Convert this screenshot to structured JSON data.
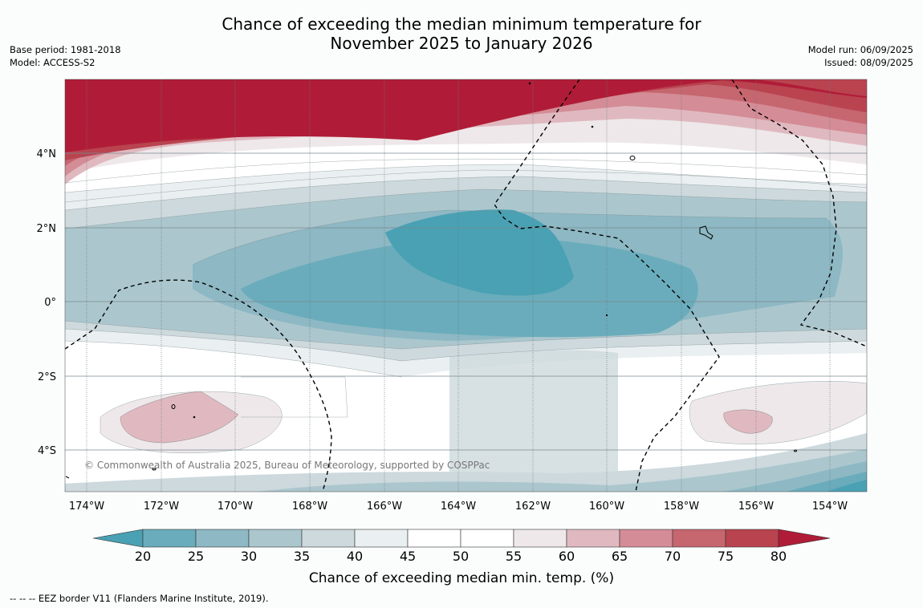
{
  "title": {
    "line1": "Chance of exceeding the median minimum temperature for",
    "line2": "November 2025 to January 2026"
  },
  "meta": {
    "base_period": "Base period: 1981-2018",
    "model": "Model: ACCESS-S2",
    "model_run": "Model run: 06/09/2025",
    "issued": "Issued: 08/09/2025"
  },
  "copyright": "© Commonwealth of Australia 2025, Bureau of Meteorology, supported by COSPPac",
  "lat_labels": [
    "4°N",
    "2°N",
    "0°",
    "2°S",
    "4°S"
  ],
  "lon_labels": [
    "174°W",
    "172°W",
    "170°W",
    "168°W",
    "166°W",
    "164°W",
    "162°W",
    "160°W",
    "158°W",
    "156°W",
    "154°W"
  ],
  "colorbar": {
    "ticks": [
      "20",
      "25",
      "30",
      "35",
      "40",
      "45",
      "50",
      "55",
      "60",
      "65",
      "70",
      "75",
      "80"
    ],
    "label": "Chance of exceeding median min. temp. (%)",
    "colors": [
      "#49a1b3",
      "#6aacbb",
      "#8db8c4",
      "#abc7cd",
      "#cdd9dd",
      "#eaeff1",
      "#ffffff",
      "#ffffff",
      "#eee8ea",
      "#e0b9c0",
      "#d48c96",
      "#c6666f",
      "#b9434f",
      "#b01c37"
    ]
  },
  "footnote": "--  --  -- EEZ border V11 (Flanders Marine Institute, 2019)."
}
